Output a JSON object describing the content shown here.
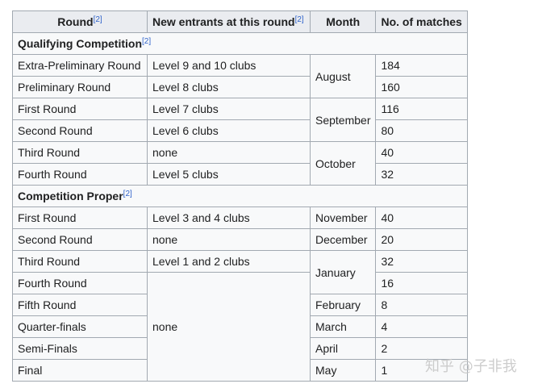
{
  "table": {
    "headers": [
      {
        "label": "Round",
        "ref": "[2]"
      },
      {
        "label": "New entrants at this round",
        "ref": "[2]"
      },
      {
        "label": "Month",
        "ref": ""
      },
      {
        "label": "No. of matches",
        "ref": ""
      }
    ],
    "sections": [
      {
        "title": "Qualifying Competition",
        "ref": "[2]",
        "rows": [
          {
            "round": "Extra-Preliminary Round",
            "entrants": "Level 9 and 10 clubs",
            "month": "August",
            "month_span": 2,
            "matches": "184"
          },
          {
            "round": "Preliminary Round",
            "entrants": "Level 8 clubs",
            "matches": "160"
          },
          {
            "round": "First Round",
            "entrants": "Level 7 clubs",
            "month": "September",
            "month_span": 2,
            "matches": "116"
          },
          {
            "round": "Second Round",
            "entrants": "Level 6 clubs",
            "matches": "80"
          },
          {
            "round": "Third Round",
            "entrants": "none",
            "month": "October",
            "month_span": 2,
            "matches": "40"
          },
          {
            "round": "Fourth Round",
            "entrants": "Level 5 clubs",
            "matches": "32"
          }
        ]
      },
      {
        "title": "Competition Proper",
        "ref": "[2]",
        "rows": [
          {
            "round": "First Round",
            "entrants": "Level 3 and 4 clubs",
            "month": "November",
            "month_span": 1,
            "matches": "40"
          },
          {
            "round": "Second Round",
            "entrants": "none",
            "month": "December",
            "month_span": 1,
            "matches": "20"
          },
          {
            "round": "Third Round",
            "entrants": "Level 1 and 2 clubs",
            "month": "January",
            "month_span": 2,
            "matches": "32"
          },
          {
            "round": "Fourth Round",
            "entrants": "none",
            "entrants_span": 5,
            "matches": "16"
          },
          {
            "round": "Fifth Round",
            "month": "February",
            "month_span": 1,
            "matches": "8"
          },
          {
            "round": "Quarter-finals",
            "month": "March",
            "month_span": 1,
            "matches": "4"
          },
          {
            "round": "Semi-Finals",
            "month": "April",
            "month_span": 1,
            "matches": "2"
          },
          {
            "round": "Final",
            "month": "May",
            "month_span": 1,
            "matches": "1"
          }
        ]
      }
    ]
  },
  "watermark": "知乎 @子非我",
  "colors": {
    "header_bg": "#eaecf0",
    "cell_bg": "#f8f9fa",
    "border": "#a2a9b1",
    "link": "#3366cc"
  }
}
